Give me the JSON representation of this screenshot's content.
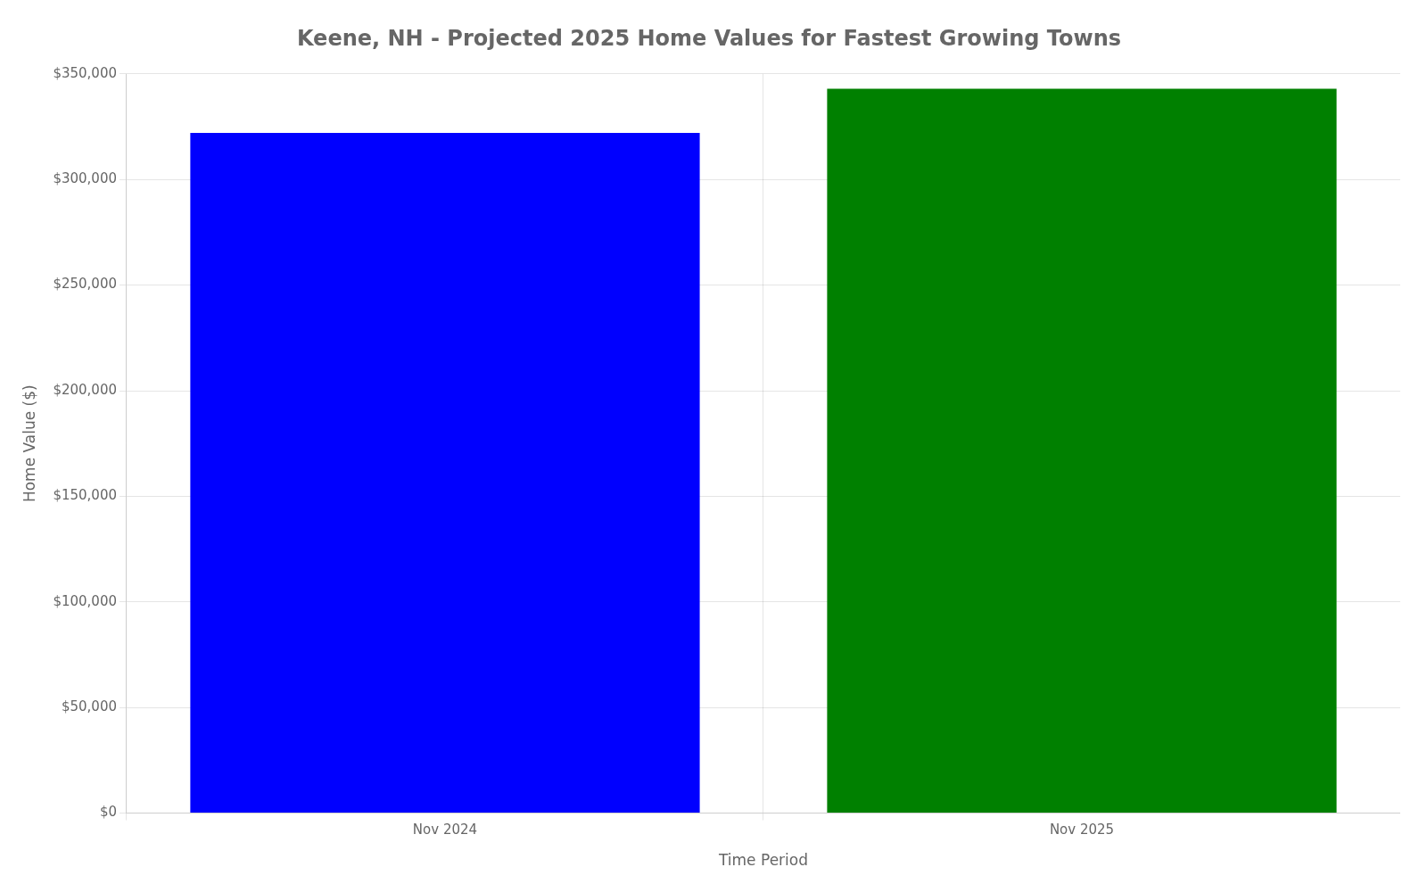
{
  "chart_data": {
    "type": "bar",
    "title": "Keene, NH - Projected 2025 Home Values for Fastest Growing Towns",
    "xlabel": "Time Period",
    "ylabel": "Home Value ($)",
    "categories": [
      "Nov 2024",
      "Nov 2025"
    ],
    "values": [
      322000,
      343000
    ],
    "colors": [
      "#0000ff",
      "#008000"
    ],
    "ylim": [
      0,
      350000
    ],
    "yticks": [
      {
        "value": 0,
        "label": "$0"
      },
      {
        "value": 50000,
        "label": "$50,000"
      },
      {
        "value": 100000,
        "label": "$100,000"
      },
      {
        "value": 150000,
        "label": "$150,000"
      },
      {
        "value": 200000,
        "label": "$200,000"
      },
      {
        "value": 250000,
        "label": "$250,000"
      },
      {
        "value": 300000,
        "label": "$300,000"
      },
      {
        "value": 350000,
        "label": "$350,000"
      }
    ],
    "grid": true
  }
}
